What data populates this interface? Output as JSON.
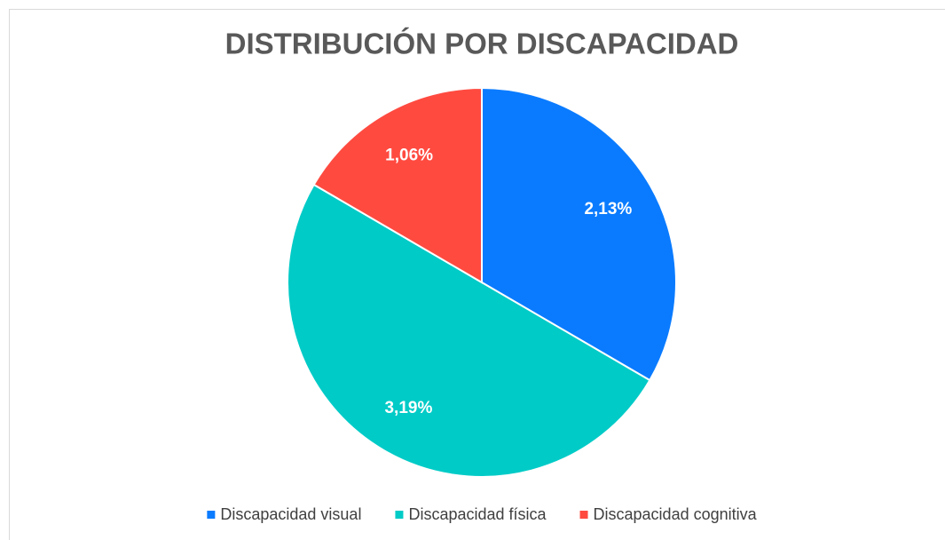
{
  "chart_data": {
    "type": "pie",
    "title": "DISTRIBUCIÓN POR DISCAPACIDAD",
    "categories": [
      "Discapacidad visual",
      "Discapacidad física",
      "Discapacidad cognitiva"
    ],
    "values": [
      2.13,
      3.19,
      1.06
    ],
    "value_labels": [
      "2,13%",
      "3,19%",
      "1,06%"
    ],
    "colors": [
      "#0a7bff",
      "#00cbc7",
      "#ff4a40"
    ],
    "legend": "bottom"
  }
}
